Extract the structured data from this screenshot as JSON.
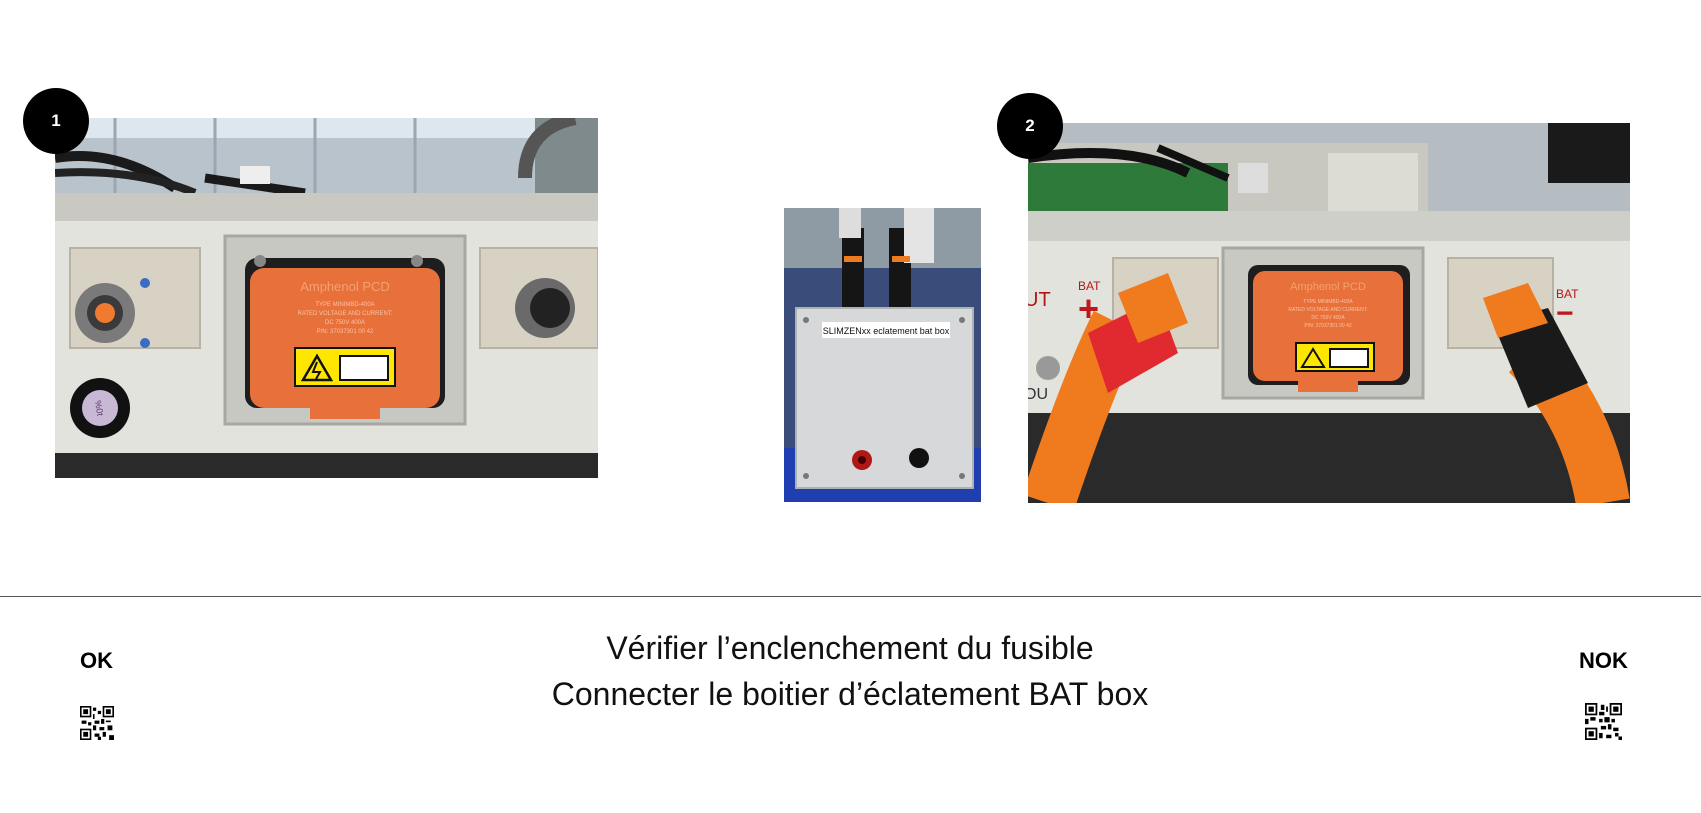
{
  "steps": [
    {
      "number": "1"
    },
    {
      "number": "2"
    }
  ],
  "photo_1": {
    "connector_label_brand": "Amphenol PCD",
    "connector_label_lines": [
      "TYPE MINIMBD-400A",
      "RATED VOLTAGE AND CURRENT:",
      "DC 750V 400A",
      "P/N: 37037301 00 42"
    ],
    "side_marking": "%0t"
  },
  "photo_box": {
    "label": "SLIMZENxx eclatement bat box"
  },
  "photo_2": {
    "left_marking_out": "UT",
    "left_marking_bat": "BAT",
    "left_sign": "+",
    "right_marking_bat": "BAT",
    "right_sign": "−",
    "lower_marking": "OU",
    "connector_label_brand": "Amphenol PCD",
    "connector_label_lines": [
      "TYPE MINIMBD-400A",
      "RATED VOLTAGE AND CURRENT:",
      "DC 750V 400A",
      "P/N: 37037301 00 42"
    ]
  },
  "instructions": {
    "line_1": "Vérifier l’enclenchement du fusible",
    "line_2": "Connecter le boitier d’éclatement BAT box"
  },
  "status": {
    "ok_label": "OK",
    "nok_label": "NOK"
  },
  "icons": {
    "qr_ok": "qr-code-icon",
    "qr_nok": "qr-code-icon"
  },
  "colors": {
    "connector_orange": "#e8703a",
    "cable_orange": "#f07a1e",
    "warning_yellow": "#ffe600",
    "housing_grey": "#dcdcd6",
    "box_blue": "#1f3fb0"
  }
}
